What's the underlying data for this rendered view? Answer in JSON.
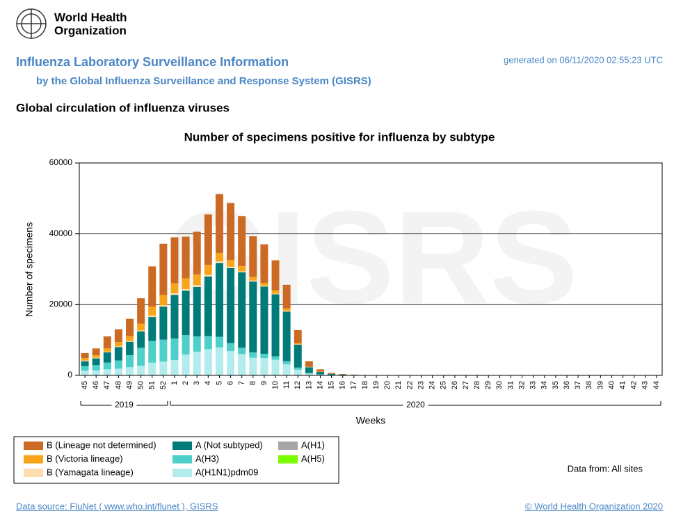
{
  "header": {
    "org_line1": "World Health",
    "org_line2": "Organization",
    "title": "Influenza Laboratory Surveillance Information",
    "subtitle": "by the Global Influenza Surveillance and Response System (GISRS)",
    "generated": "generated on 06/11/2020 02:55:23 UTC",
    "section_title": "Global circulation of influenza viruses"
  },
  "chart_data": {
    "type": "bar",
    "stacked": true,
    "title": "Number of specimens positive for influenza by subtype",
    "watermark": "GISRS",
    "x_label": "Weeks",
    "y_label": "Number of specimens",
    "x_groups": [
      "2019",
      "2020"
    ],
    "categories": [
      "45",
      "46",
      "47",
      "48",
      "49",
      "50",
      "51",
      "52",
      "1",
      "2",
      "3",
      "4",
      "5",
      "6",
      "7",
      "8",
      "9",
      "10",
      "11",
      "12",
      "13",
      "14",
      "15",
      "16",
      "17",
      "18",
      "19",
      "20",
      "21",
      "22",
      "23",
      "24",
      "25",
      "26",
      "27",
      "28",
      "29",
      "30",
      "31",
      "32",
      "33",
      "34",
      "35",
      "36",
      "37",
      "38",
      "39",
      "40",
      "41",
      "42",
      "43",
      "44"
    ],
    "ylim": [
      0,
      60000
    ],
    "yticks": [
      0,
      20000,
      40000,
      60000
    ],
    "grid": true,
    "series": [
      {
        "name": "B (Lineage not determined)",
        "color": "#cc6a24",
        "values": [
          1400,
          1900,
          3400,
          3600,
          4900,
          7200,
          11400,
          14500,
          13000,
          11800,
          12100,
          14300,
          16600,
          16100,
          14100,
          11500,
          10900,
          8500,
          6700,
          3700,
          1550,
          600,
          200,
          150,
          60,
          15,
          15,
          15,
          15,
          15,
          15,
          15,
          15,
          15,
          15,
          15,
          15,
          15,
          15,
          15,
          15,
          15,
          15,
          15,
          15,
          15,
          15,
          15,
          15,
          15,
          15,
          15
        ]
      },
      {
        "name": "B (Victoria lineage)",
        "color": "#f9a51b",
        "values": [
          700,
          700,
          900,
          1200,
          1400,
          1900,
          2500,
          2900,
          2800,
          3000,
          3000,
          2800,
          2400,
          1900,
          1500,
          1000,
          800,
          900,
          700,
          300,
          100,
          100,
          50,
          20,
          10,
          0,
          0,
          0,
          0,
          0,
          0,
          0,
          0,
          0,
          0,
          0,
          0,
          0,
          0,
          0,
          0,
          0,
          0,
          0,
          0,
          0,
          0,
          0,
          0,
          0,
          0,
          0
        ]
      },
      {
        "name": "B (Yamagata lineage)",
        "color": "#fddcae",
        "values": [
          200,
          200,
          200,
          200,
          200,
          300,
          400,
          400,
          500,
          500,
          500,
          500,
          500,
          400,
          300,
          300,
          200,
          200,
          200,
          100,
          50,
          0,
          0,
          0,
          0,
          0,
          0,
          0,
          0,
          0,
          0,
          0,
          0,
          0,
          0,
          0,
          0,
          0,
          0,
          0,
          0,
          0,
          0,
          0,
          0,
          0,
          0,
          0,
          0,
          0,
          0,
          0
        ]
      },
      {
        "name": "A (Not subtyped)",
        "color": "#007b7a",
        "values": [
          1400,
          1900,
          2900,
          3800,
          3800,
          4600,
          6800,
          9300,
          12300,
          12500,
          14000,
          16800,
          20800,
          21200,
          21300,
          20000,
          19000,
          17500,
          14000,
          6500,
          1600,
          700,
          300,
          150,
          80,
          30,
          30,
          30,
          30,
          30,
          30,
          30,
          30,
          30,
          30,
          30,
          30,
          30,
          30,
          30,
          30,
          30,
          30,
          30,
          30,
          30,
          30,
          30,
          30,
          30,
          30,
          30
        ]
      },
      {
        "name": "A(H3)",
        "color": "#4ecfc9",
        "values": [
          1300,
          1500,
          1900,
          2300,
          3400,
          5100,
          6100,
          6200,
          6100,
          5500,
          4300,
          3700,
          3000,
          2200,
          1800,
          1500,
          1200,
          1000,
          900,
          600,
          200,
          100,
          50,
          30,
          20,
          5,
          5,
          5,
          5,
          5,
          5,
          5,
          5,
          5,
          5,
          5,
          5,
          5,
          5,
          5,
          5,
          5,
          5,
          5,
          5,
          5,
          5,
          5,
          5,
          5,
          5,
          5
        ]
      },
      {
        "name": "A(H1N1)pdm09",
        "color": "#b3ecec",
        "values": [
          1300,
          1400,
          1700,
          1900,
          2300,
          2700,
          3600,
          3900,
          4300,
          5900,
          6700,
          7400,
          7900,
          6900,
          6000,
          5000,
          4900,
          4400,
          3100,
          1600,
          500,
          200,
          100,
          50,
          30,
          10,
          10,
          10,
          10,
          10,
          10,
          10,
          10,
          10,
          10,
          10,
          10,
          10,
          10,
          10,
          10,
          10,
          10,
          10,
          10,
          10,
          10,
          10,
          10,
          10,
          10,
          10
        ]
      },
      {
        "name": "A(H1)",
        "color": "#a6a6a6",
        "values": [
          0,
          0,
          0,
          0,
          0,
          0,
          0,
          0,
          0,
          0,
          0,
          0,
          0,
          0,
          0,
          0,
          0,
          0,
          0,
          0,
          0,
          0,
          0,
          0,
          0,
          0,
          0,
          0,
          0,
          0,
          0,
          0,
          0,
          0,
          0,
          0,
          0,
          0,
          0,
          0,
          0,
          0,
          0,
          0,
          0,
          0,
          0,
          0,
          0,
          0,
          0,
          0
        ]
      },
      {
        "name": "A(H5)",
        "color": "#7cfc00",
        "values": [
          0,
          0,
          0,
          0,
          0,
          0,
          0,
          0,
          0,
          0,
          0,
          0,
          0,
          0,
          0,
          0,
          0,
          0,
          0,
          0,
          0,
          0,
          0,
          0,
          0,
          0,
          0,
          0,
          0,
          0,
          0,
          0,
          0,
          0,
          0,
          0,
          0,
          0,
          0,
          0,
          0,
          0,
          0,
          0,
          0,
          0,
          0,
          0,
          0,
          0,
          0,
          0
        ]
      }
    ],
    "note": "Data from: All sites"
  },
  "footer": {
    "source": "Data source: FluNet ( www.who.int/flunet ), GISRS",
    "copyright": "© World Health Organization 2020"
  }
}
